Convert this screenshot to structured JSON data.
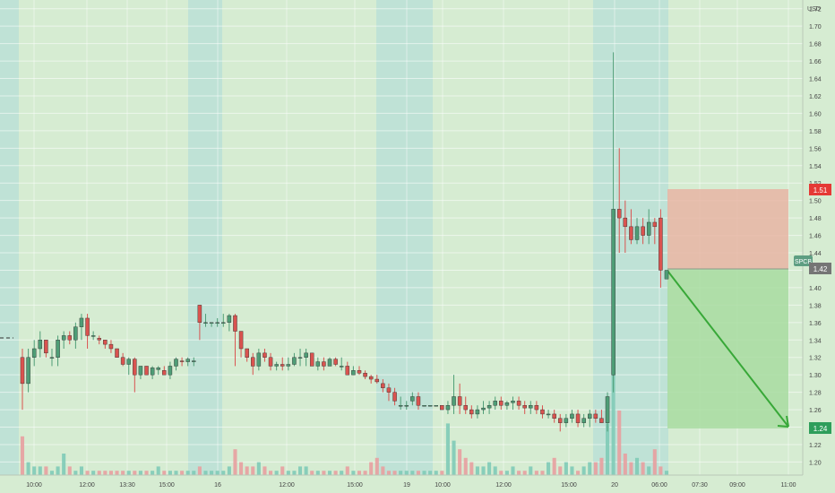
{
  "chart_data": {
    "type": "candlestick",
    "currency": "USD",
    "symbol": "SPCB",
    "ylim": [
      1.185,
      1.73
    ],
    "y_ticks": [
      "1.20",
      "1.22",
      "1.24",
      "1.26",
      "1.28",
      "1.30",
      "1.32",
      "1.34",
      "1.36",
      "1.38",
      "1.40",
      "1.42",
      "1.44",
      "1.46",
      "1.48",
      "1.50",
      "1.52",
      "1.54",
      "1.56",
      "1.58",
      "1.60",
      "1.62",
      "1.64",
      "1.66",
      "1.68",
      "1.70",
      "1.72"
    ],
    "x_ticks": [
      {
        "label": "10:00",
        "x": 38
      },
      {
        "label": "12:00",
        "x": 97
      },
      {
        "label": "13:30",
        "x": 142
      },
      {
        "label": "15:00",
        "x": 186
      },
      {
        "label": "16",
        "x": 243
      },
      {
        "label": "12:00",
        "x": 320
      },
      {
        "label": "15:00",
        "x": 396
      },
      {
        "label": "19",
        "x": 454
      },
      {
        "label": "10:00",
        "x": 494
      },
      {
        "label": "12:00",
        "x": 562
      },
      {
        "label": "15:00",
        "x": 635
      },
      {
        "label": "20",
        "x": 686
      },
      {
        "label": "06:00",
        "x": 736
      },
      {
        "label": "07:30",
        "x": 781
      },
      {
        "label": "09:00",
        "x": 823
      },
      {
        "label": "11:00",
        "x": 880
      }
    ],
    "candles": [
      [
        1.32,
        1.33,
        1.26,
        1.29
      ],
      [
        1.29,
        1.33,
        1.28,
        1.32
      ],
      [
        1.32,
        1.34,
        1.31,
        1.33
      ],
      [
        1.33,
        1.35,
        1.32,
        1.34
      ],
      [
        1.34,
        1.34,
        1.32,
        1.325
      ],
      [
        1.32,
        1.33,
        1.31,
        1.32
      ],
      [
        1.32,
        1.345,
        1.31,
        1.34
      ],
      [
        1.34,
        1.35,
        1.33,
        1.345
      ],
      [
        1.345,
        1.35,
        1.335,
        1.34
      ],
      [
        1.34,
        1.36,
        1.33,
        1.355
      ],
      [
        1.355,
        1.37,
        1.34,
        1.365
      ],
      [
        1.365,
        1.37,
        1.33,
        1.345
      ],
      [
        1.345,
        1.35,
        1.34,
        1.345
      ],
      [
        1.342,
        1.345,
        1.335,
        1.34
      ],
      [
        1.34,
        1.34,
        1.33,
        1.335
      ],
      [
        1.335,
        1.34,
        1.325,
        1.33
      ],
      [
        1.33,
        1.33,
        1.32,
        1.32
      ],
      [
        1.32,
        1.325,
        1.31,
        1.312
      ],
      [
        1.312,
        1.32,
        1.3,
        1.318
      ],
      [
        1.318,
        1.32,
        1.28,
        1.3
      ],
      [
        1.3,
        1.31,
        1.295,
        1.31
      ],
      [
        1.31,
        1.31,
        1.3,
        1.3
      ],
      [
        1.3,
        1.31,
        1.295,
        1.308
      ],
      [
        1.306,
        1.31,
        1.3,
        1.308
      ],
      [
        1.305,
        1.31,
        1.3,
        1.3
      ],
      [
        1.3,
        1.315,
        1.295,
        1.31
      ],
      [
        1.31,
        1.32,
        1.305,
        1.318
      ],
      [
        1.316,
        1.32,
        1.31,
        1.315
      ],
      [
        1.315,
        1.32,
        1.31,
        1.318
      ],
      [
        1.315,
        1.32,
        1.31,
        1.316
      ],
      [
        1.38,
        1.38,
        1.34,
        1.36
      ],
      [
        1.36,
        1.37,
        1.355,
        1.36
      ],
      [
        1.36,
        1.36,
        1.355,
        1.36
      ],
      [
        1.36,
        1.365,
        1.355,
        1.36
      ],
      [
        1.36,
        1.37,
        1.355,
        1.36
      ],
      [
        1.36,
        1.37,
        1.35,
        1.368
      ],
      [
        1.368,
        1.37,
        1.31,
        1.35
      ],
      [
        1.35,
        1.35,
        1.32,
        1.33
      ],
      [
        1.33,
        1.33,
        1.315,
        1.32
      ],
      [
        1.32,
        1.325,
        1.3,
        1.31
      ],
      [
        1.31,
        1.33,
        1.305,
        1.325
      ],
      [
        1.325,
        1.33,
        1.315,
        1.32
      ],
      [
        1.32,
        1.325,
        1.305,
        1.31
      ],
      [
        1.31,
        1.315,
        1.305,
        1.312
      ],
      [
        1.312,
        1.32,
        1.305,
        1.31
      ],
      [
        1.31,
        1.32,
        1.305,
        1.312
      ],
      [
        1.312,
        1.325,
        1.31,
        1.32
      ],
      [
        1.32,
        1.33,
        1.31,
        1.32
      ],
      [
        1.32,
        1.33,
        1.31,
        1.325
      ],
      [
        1.325,
        1.325,
        1.31,
        1.31
      ],
      [
        1.31,
        1.32,
        1.305,
        1.315
      ],
      [
        1.315,
        1.32,
        1.305,
        1.31
      ],
      [
        1.31,
        1.32,
        1.31,
        1.318
      ],
      [
        1.318,
        1.32,
        1.31,
        1.312
      ],
      [
        1.31,
        1.32,
        1.305,
        1.31
      ],
      [
        1.31,
        1.315,
        1.3,
        1.3
      ],
      [
        1.3,
        1.31,
        1.3,
        1.305
      ],
      [
        1.305,
        1.31,
        1.3,
        1.302
      ],
      [
        1.302,
        1.305,
        1.295,
        1.298
      ],
      [
        1.298,
        1.3,
        1.29,
        1.295
      ],
      [
        1.295,
        1.3,
        1.29,
        1.292
      ],
      [
        1.29,
        1.295,
        1.28,
        1.285
      ],
      [
        1.285,
        1.29,
        1.27,
        1.28
      ],
      [
        1.28,
        1.285,
        1.265,
        1.27
      ],
      [
        1.265,
        1.275,
        1.26,
        1.265
      ],
      [
        1.265,
        1.27,
        1.26,
        1.265
      ],
      [
        1.27,
        1.28,
        1.265,
        1.275
      ],
      [
        1.275,
        1.28,
        1.26,
        1.265
      ],
      [
        1.265,
        1.265,
        1.265,
        1.265
      ],
      [
        1.265,
        1.265,
        1.265,
        1.265
      ],
      [
        1.265,
        1.265,
        1.265,
        1.265
      ],
      [
        1.265,
        1.265,
        1.26,
        1.26
      ],
      [
        1.26,
        1.27,
        1.255,
        1.265
      ],
      [
        1.265,
        1.3,
        1.255,
        1.275
      ],
      [
        1.275,
        1.29,
        1.255,
        1.265
      ],
      [
        1.265,
        1.275,
        1.255,
        1.26
      ],
      [
        1.26,
        1.265,
        1.25,
        1.255
      ],
      [
        1.255,
        1.265,
        1.25,
        1.26
      ],
      [
        1.26,
        1.27,
        1.255,
        1.262
      ],
      [
        1.262,
        1.27,
        1.255,
        1.265
      ],
      [
        1.265,
        1.275,
        1.26,
        1.27
      ],
      [
        1.27,
        1.275,
        1.26,
        1.265
      ],
      [
        1.265,
        1.27,
        1.26,
        1.268
      ],
      [
        1.268,
        1.275,
        1.26,
        1.27
      ],
      [
        1.27,
        1.275,
        1.26,
        1.265
      ],
      [
        1.265,
        1.27,
        1.255,
        1.262
      ],
      [
        1.262,
        1.27,
        1.255,
        1.265
      ],
      [
        1.265,
        1.27,
        1.255,
        1.26
      ],
      [
        1.26,
        1.265,
        1.25,
        1.255
      ],
      [
        1.255,
        1.26,
        1.25,
        1.255
      ],
      [
        1.255,
        1.26,
        1.245,
        1.25
      ],
      [
        1.25,
        1.255,
        1.235,
        1.245
      ],
      [
        1.245,
        1.255,
        1.24,
        1.25
      ],
      [
        1.25,
        1.26,
        1.245,
        1.255
      ],
      [
        1.255,
        1.26,
        1.24,
        1.245
      ],
      [
        1.245,
        1.255,
        1.24,
        1.25
      ],
      [
        1.25,
        1.26,
        1.24,
        1.255
      ],
      [
        1.255,
        1.26,
        1.245,
        1.25
      ],
      [
        1.25,
        1.26,
        1.245,
        1.245
      ],
      [
        1.245,
        1.28,
        1.235,
        1.275
      ],
      [
        1.3,
        1.67,
        1.28,
        1.49
      ],
      [
        1.49,
        1.56,
        1.44,
        1.48
      ],
      [
        1.48,
        1.5,
        1.44,
        1.47
      ],
      [
        1.47,
        1.49,
        1.45,
        1.455
      ],
      [
        1.455,
        1.48,
        1.45,
        1.47
      ],
      [
        1.47,
        1.48,
        1.45,
        1.46
      ],
      [
        1.46,
        1.49,
        1.45,
        1.475
      ],
      [
        1.475,
        1.48,
        1.45,
        1.47
      ],
      [
        1.48,
        1.49,
        1.4,
        1.42
      ],
      [
        1.41,
        1.42,
        1.41,
        1.42
      ]
    ],
    "volumes": [
      9,
      3,
      2,
      2,
      2,
      1,
      2,
      5,
      2,
      1,
      2,
      1,
      1,
      1,
      1,
      1,
      1,
      1,
      1,
      1,
      1,
      1,
      1,
      2,
      1,
      1,
      1,
      1,
      1,
      1,
      2,
      1,
      1,
      1,
      1,
      2,
      6,
      3,
      2,
      2,
      3,
      2,
      1,
      1,
      2,
      1,
      1,
      2,
      2,
      1,
      1,
      1,
      1,
      1,
      1,
      2,
      1,
      1,
      1,
      3,
      4,
      2,
      1,
      1,
      1,
      1,
      1,
      1,
      1,
      1,
      1,
      1,
      12,
      8,
      6,
      4,
      3,
      2,
      2,
      3,
      2,
      1,
      1,
      2,
      1,
      1,
      2,
      1,
      1,
      3,
      4,
      2,
      3,
      2,
      1,
      2,
      3,
      3,
      4,
      12,
      28,
      15,
      5,
      3,
      4,
      3,
      2,
      6,
      2,
      1
    ],
    "last_price": "1.42",
    "labels": {
      "stop": "1.51",
      "current": "1.42",
      "target": "1.24"
    },
    "position": {
      "type": "short",
      "entry": 1.42,
      "stop": 1.51,
      "target": 1.24
    },
    "colors": {
      "up": "#4e9d76",
      "down": "#d9534f",
      "vol_up": "#7fcbb7",
      "vol_down": "#e8a0a0",
      "bg": "#d6ecd2",
      "session": "#bfe2d6",
      "risk": "#e7b5a5",
      "reward": "#a8dca1",
      "arrow": "#38a838"
    }
  }
}
